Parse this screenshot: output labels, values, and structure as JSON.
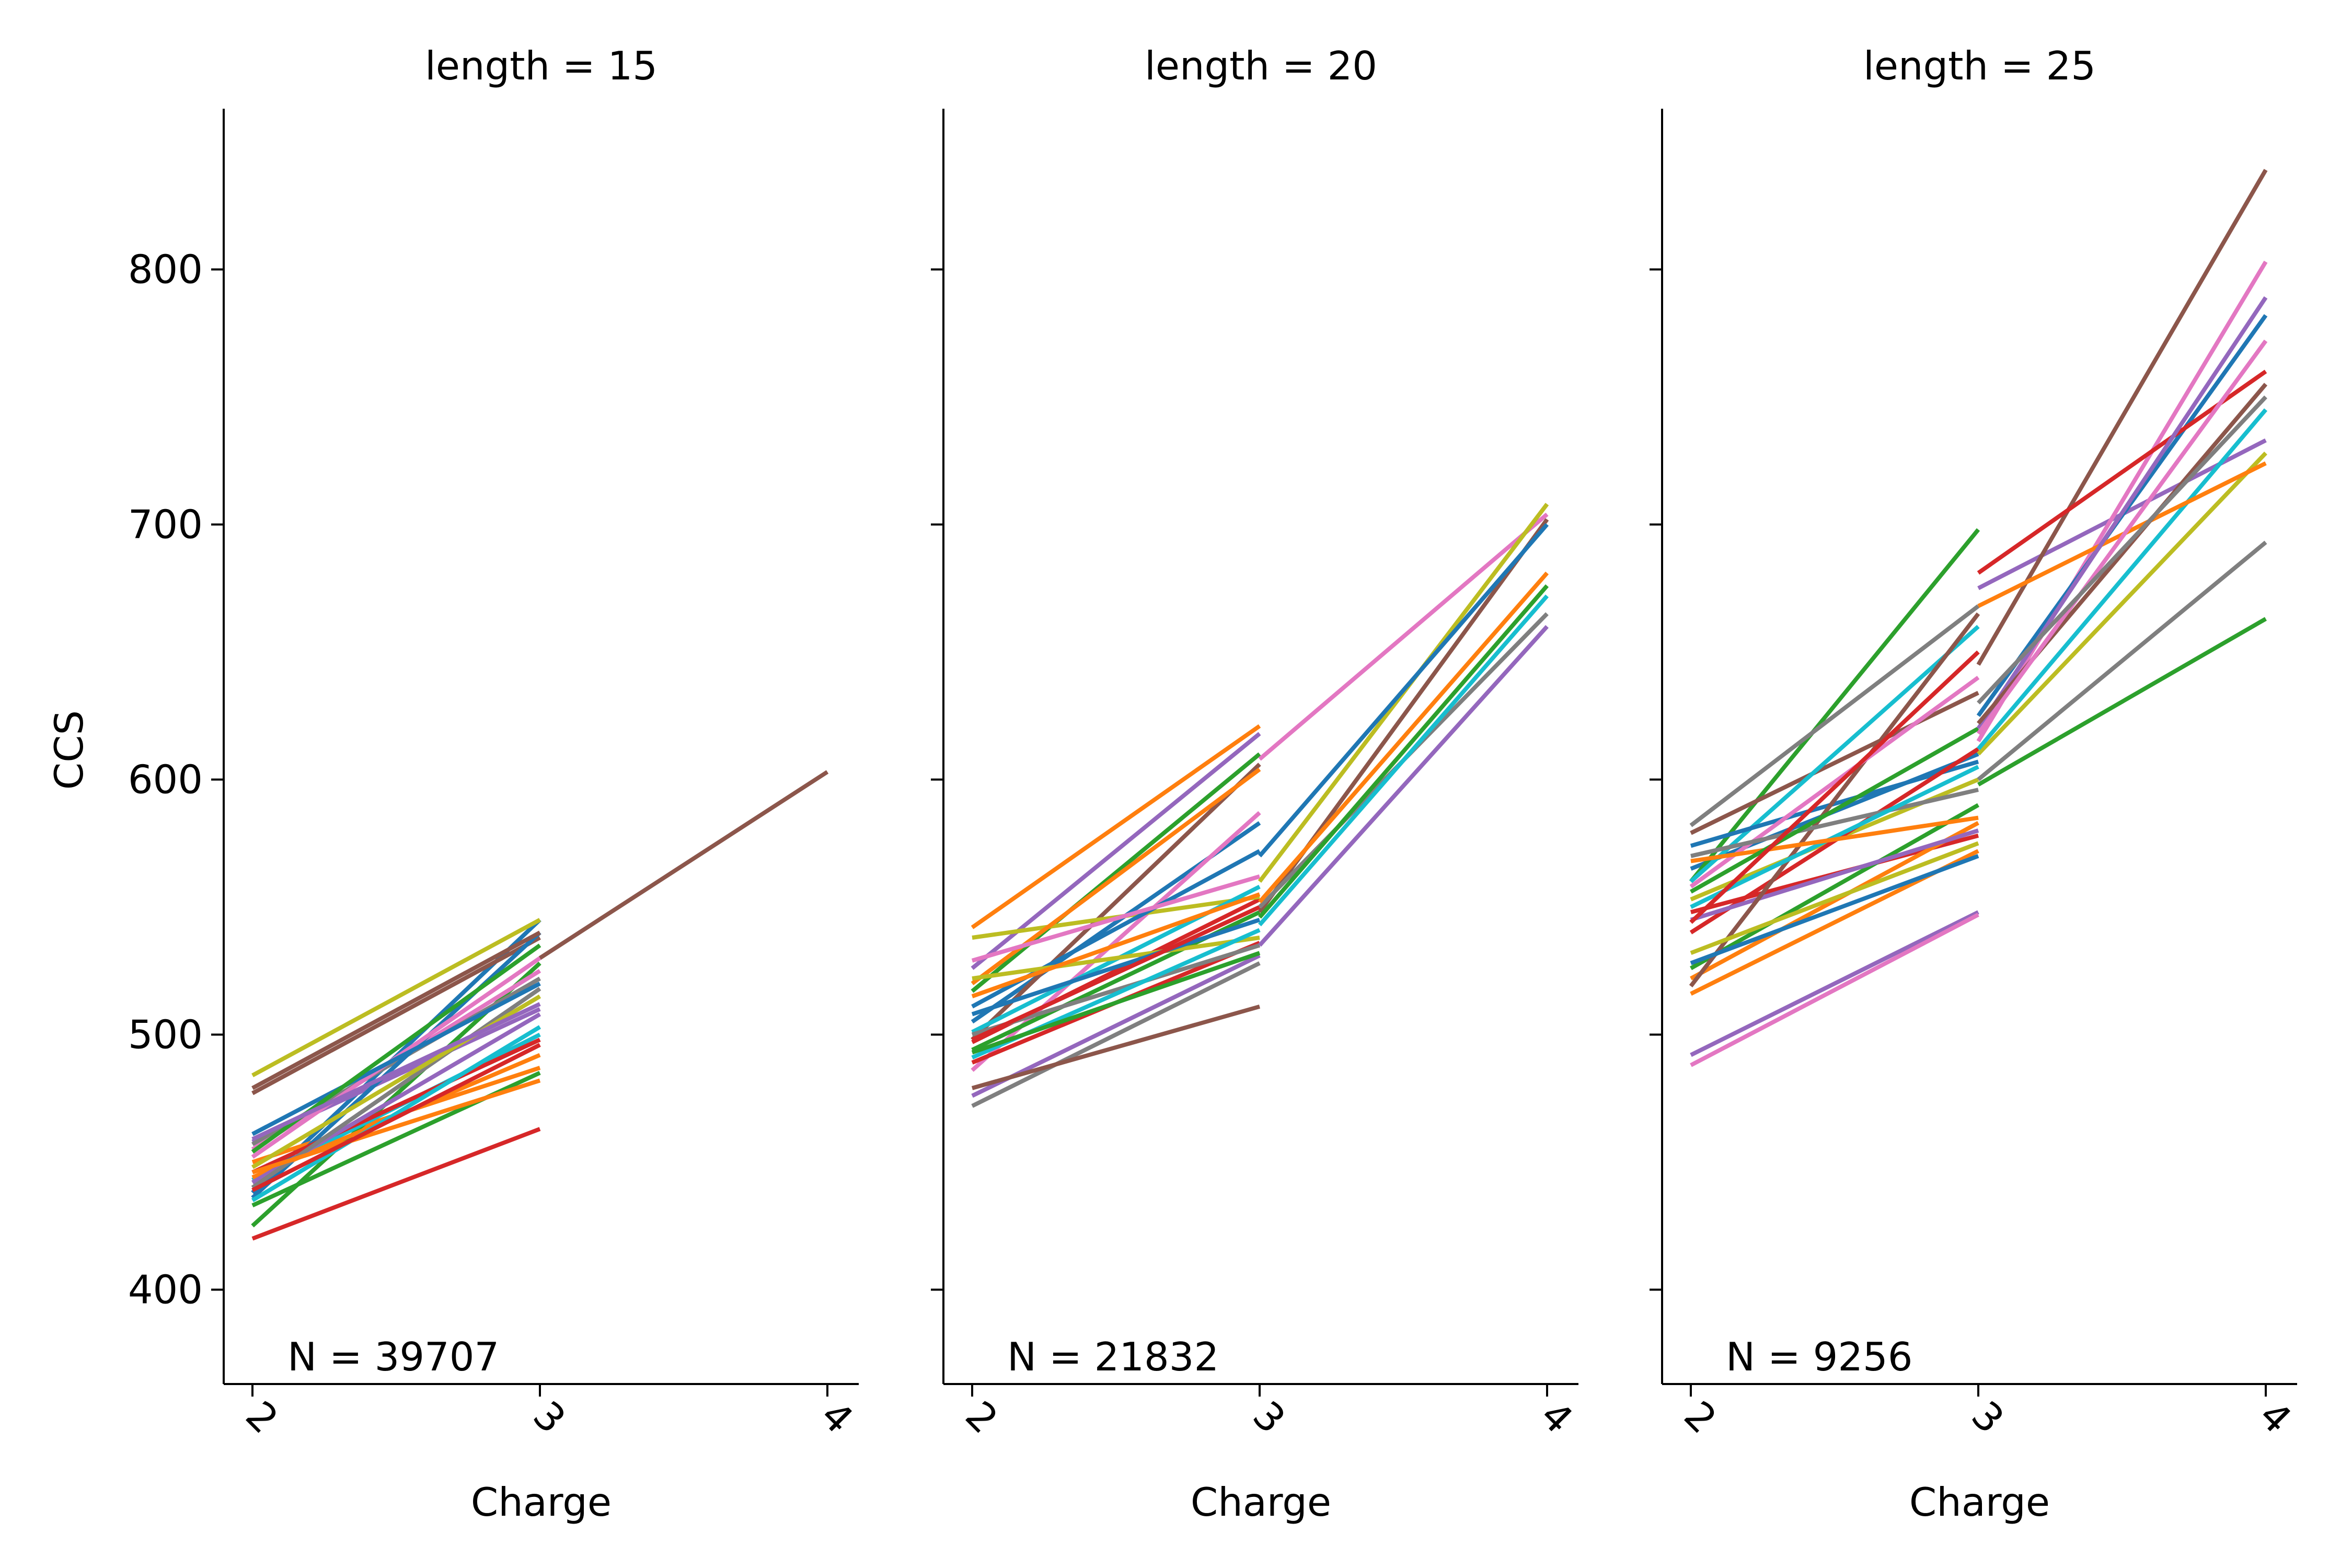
{
  "chart_data": {
    "type": "line",
    "ylabel": "CCS",
    "ylim": [
      363,
      863
    ],
    "yticks": [
      400,
      500,
      600,
      700,
      800
    ],
    "grid": false,
    "palette": [
      "#1f77b4",
      "#ff7f0e",
      "#2ca02c",
      "#d62728",
      "#9467bd",
      "#8c564b",
      "#e377c2",
      "#7f7f7f",
      "#bcbd22",
      "#17becf"
    ],
    "panels": [
      {
        "title": "length = 15",
        "xlabel": "Charge",
        "x": [
          2,
          3,
          4
        ],
        "annotation": "N = 39707",
        "series": [
          {
            "values": [
              438,
              545
            ]
          },
          {
            "values": [
              450,
              487
            ]
          },
          {
            "values": [
              425,
              528
            ]
          },
          {
            "values": [
              420,
              463
            ]
          },
          {
            "values": [
              458,
              510
            ]
          },
          {
            "values": [
              477,
              538
            ]
          },
          {
            "values": [
              455,
              525
            ]
          },
          {
            "values": [
              457,
              522
            ]
          },
          {
            "values": [
              484,
              545
            ]
          },
          {
            "values": [
              443,
              500
            ]
          },
          {
            "values": [
              436,
              540
            ]
          },
          {
            "values": [
              444,
              492
            ]
          },
          {
            "values": [
              433,
              485
            ]
          },
          {
            "values": [
              446,
              498
            ]
          },
          {
            "values": [
              442,
              508
            ]
          },
          {
            "values": [
              479,
              540
            ]
          },
          {
            "values": [
              452,
              530
            ]
          },
          {
            "values": [
              440,
              518
            ]
          },
          {
            "values": [
              448,
              515
            ]
          },
          {
            "values": [
              435,
              503
            ]
          },
          {
            "values": [
              461,
              520
            ]
          },
          {
            "values": [
              446,
              482
            ]
          },
          {
            "values": [
              454,
              535
            ]
          },
          {
            "values": [
              439,
              496
            ]
          },
          {
            "values": [
              459,
              512
            ]
          },
          {
            "values": [
              null,
              530,
              603
            ]
          }
        ]
      },
      {
        "title": "length = 20",
        "xlabel": "Charge",
        "x": [
          2,
          3,
          4
        ],
        "annotation": "N = 21832",
        "series": [
          {
            "values": [
              505,
              583
            ]
          },
          {
            "values": [
              542,
              621
            ]
          },
          {
            "values": [
              517,
              610
            ]
          },
          {
            "values": [
              497,
              553
            ]
          },
          {
            "values": [
              526,
              618
            ]
          },
          {
            "values": [
              498,
              606
            ]
          },
          {
            "values": [
              486,
              587
            ]
          },
          {
            "values": [
              472,
              528
            ]
          },
          {
            "values": [
              538,
              554
            ]
          },
          {
            "values": [
              501,
              558
            ]
          },
          {
            "values": [
              511,
              572
            ]
          },
          {
            "values": [
              520,
              604
            ]
          },
          {
            "values": [
              494,
              548
            ]
          },
          {
            "values": [
              489,
              536
            ]
          },
          {
            "values": [
              476,
              531
            ]
          },
          {
            "values": [
              479,
              511
            ]
          },
          {
            "values": [
              529,
              562
            ]
          },
          {
            "values": [
              500,
              535
            ]
          },
          {
            "values": [
              522,
              538
            ]
          },
          {
            "values": [
              491,
              541
            ]
          },
          {
            "values": [
              508,
              545
            ]
          },
          {
            "values": [
              515,
              555
            ]
          },
          {
            "values": [
              493,
              532
            ]
          },
          {
            "values": [
              498,
              550
            ]
          },
          {
            "values": [
              null,
              535,
              660
            ]
          },
          {
            "values": [
              null,
              548,
              702
            ]
          },
          {
            "values": [
              null,
              608,
              704
            ]
          },
          {
            "values": [
              null,
              550,
              665
            ]
          },
          {
            "values": [
              null,
              560,
              708
            ]
          },
          {
            "values": [
              null,
              543,
              672
            ]
          },
          {
            "values": [
              null,
              570,
              700
            ]
          },
          {
            "values": [
              null,
              552,
              681
            ]
          },
          {
            "values": [
              null,
              546,
              676
            ]
          }
        ]
      },
      {
        "title": "length = 25",
        "xlabel": "Charge",
        "x": [
          2,
          3,
          4
        ],
        "annotation": "N = 9256",
        "series": [
          {
            "values": [
              565,
              610
            ]
          },
          {
            "values": [
              516,
              572
            ]
          },
          {
            "values": [
              560,
              698
            ]
          },
          {
            "values": [
              548,
              578
            ]
          },
          {
            "values": [
              492,
              548
            ]
          },
          {
            "values": [
              579,
              634
            ]
          },
          {
            "values": [
              488,
              547
            ]
          },
          {
            "values": [
              582,
              668
            ]
          },
          {
            "values": [
              553,
              600
            ]
          },
          {
            "values": [
              560,
              660
            ]
          },
          {
            "values": [
              574,
              607
            ]
          },
          {
            "values": [
              522,
              583
            ]
          },
          {
            "values": [
              526,
              590
            ]
          },
          {
            "values": [
              540,
              612
            ]
          },
          {
            "values": [
              545,
              580
            ]
          },
          {
            "values": [
              519,
              665
            ]
          },
          {
            "values": [
              558,
              640
            ]
          },
          {
            "values": [
              570,
              596
            ]
          },
          {
            "values": [
              532,
              575
            ]
          },
          {
            "values": [
              550,
              605
            ]
          },
          {
            "values": [
              528,
              570
            ]
          },
          {
            "values": [
              568,
              585
            ]
          },
          {
            "values": [
              556,
              620
            ]
          },
          {
            "values": [
              544,
              650
            ]
          },
          {
            "values": [
              null,
              675,
              733
            ]
          },
          {
            "values": [
              null,
              645,
              839
            ]
          },
          {
            "values": [
              null,
              615,
              803
            ]
          },
          {
            "values": [
              null,
              600,
              693
            ]
          },
          {
            "values": [
              null,
              610,
              728
            ]
          },
          {
            "values": [
              null,
              612,
              745
            ]
          },
          {
            "values": [
              null,
              625,
              782
            ]
          },
          {
            "values": [
              null,
              668,
              724
            ]
          },
          {
            "values": [
              null,
              598,
              663
            ]
          },
          {
            "values": [
              null,
              681,
              760
            ]
          },
          {
            "values": [
              null,
              620,
              789
            ]
          },
          {
            "values": [
              null,
              622,
              755
            ]
          },
          {
            "values": [
              null,
              618,
              772
            ]
          },
          {
            "values": [
              null,
              630,
              750
            ]
          }
        ]
      }
    ]
  }
}
